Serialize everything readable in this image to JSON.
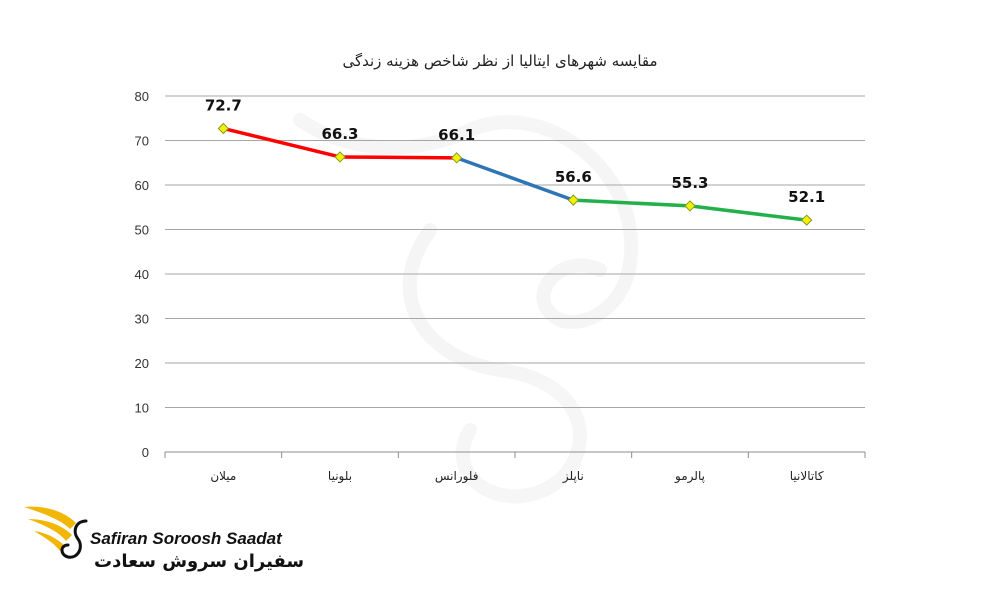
{
  "chart_data": {
    "type": "line",
    "title": "مقایسه شهرهای ایتالیا از نظر شاخص هزینه زندگی",
    "categories": [
      "میلان",
      "بلونیا",
      "فلورانس",
      "ناپلز",
      "پالرمو",
      "کاتالانیا"
    ],
    "values": [
      72.7,
      66.3,
      66.1,
      56.6,
      55.3,
      52.1
    ],
    "value_labels": [
      "72.7",
      "66.3",
      "66.1",
      "56.6",
      "55.3",
      "52.1"
    ],
    "segment_colors": [
      "#ff0000",
      "#ff0000",
      "#2e75b6",
      "#23b04a",
      "#23b04a"
    ],
    "marker_color": "#f2f200",
    "ylim": [
      0,
      80
    ],
    "yticks": [
      0,
      10,
      20,
      30,
      40,
      50,
      60,
      70,
      80
    ],
    "ytick_labels": [
      "0",
      "10",
      "20",
      "30",
      "40",
      "50",
      "60",
      "70",
      "80"
    ],
    "grid": true,
    "xlabel": "",
    "ylabel": ""
  },
  "logo": {
    "name_en": "Safiran Soroosh Saadat",
    "name_fa": "سفیران سروش سعادت",
    "colors": {
      "wing": "#f2b705",
      "text": "#111111"
    },
    "icon": "wing-icon"
  }
}
